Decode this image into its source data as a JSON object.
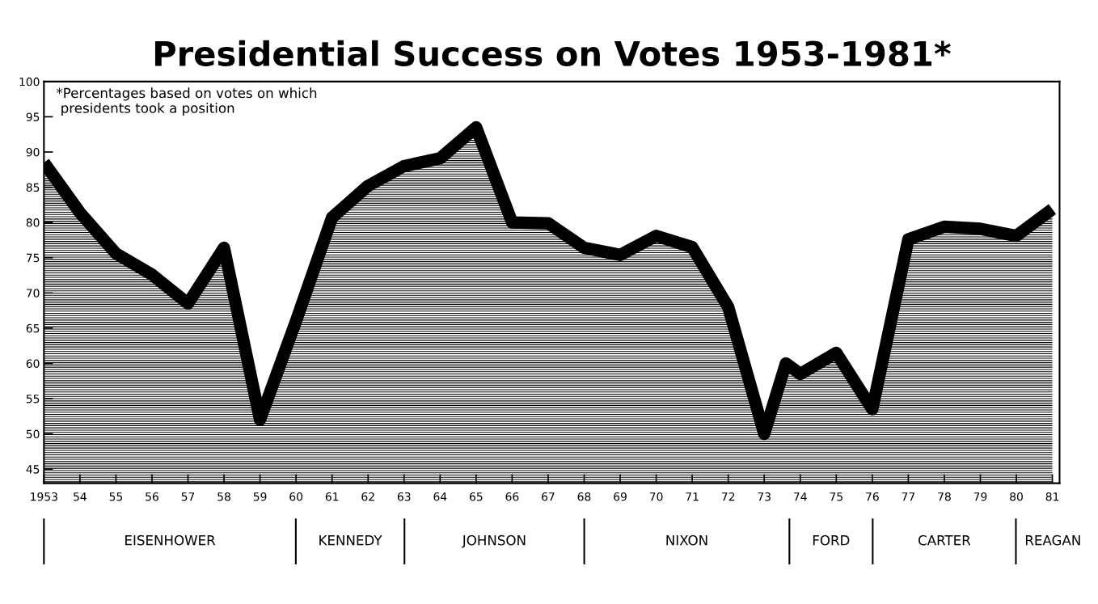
{
  "chart_data": {
    "type": "area",
    "title": "Presidential Success on Votes 1953-1981*",
    "x": [
      1953,
      1954,
      1955,
      1956,
      1957,
      1958,
      1959,
      1960,
      1961,
      1962,
      1963,
      1964,
      1965,
      1966,
      1967,
      1968,
      1969,
      1970,
      1971,
      1972,
      1973,
      1973.6,
      1974,
      1975,
      1976,
      1977,
      1978,
      1979,
      1980,
      1981
    ],
    "series": [
      {
        "color": "#000000",
        "values": [
          88.5,
          81.4,
          75.6,
          72.6,
          68.5,
          76.4,
          52,
          66,
          80.7,
          85.2,
          88,
          89.1,
          93.5,
          80,
          79.9,
          76.4,
          75.4,
          78.1,
          76.5,
          68,
          50,
          60,
          58.5,
          61.5,
          53.5,
          77.6,
          79.4,
          79.1,
          78.1,
          81.9
        ]
      }
    ],
    "xlim": [
      1953,
      1981.2
    ],
    "ylim": [
      43,
      100
    ],
    "xticks": [
      {
        "value": 1953,
        "label": "1953"
      },
      {
        "value": 1954,
        "label": "54"
      },
      {
        "value": 1955,
        "label": "55"
      },
      {
        "value": 1956,
        "label": "56"
      },
      {
        "value": 1957,
        "label": "57"
      },
      {
        "value": 1958,
        "label": "58"
      },
      {
        "value": 1959,
        "label": "59"
      },
      {
        "value": 1960,
        "label": "60"
      },
      {
        "value": 1961,
        "label": "61"
      },
      {
        "value": 1962,
        "label": "62"
      },
      {
        "value": 1963,
        "label": "63"
      },
      {
        "value": 1964,
        "label": "64"
      },
      {
        "value": 1965,
        "label": "65"
      },
      {
        "value": 1966,
        "label": "66"
      },
      {
        "value": 1967,
        "label": "67"
      },
      {
        "value": 1968,
        "label": "68"
      },
      {
        "value": 1969,
        "label": "69"
      },
      {
        "value": 1970,
        "label": "70"
      },
      {
        "value": 1971,
        "label": "71"
      },
      {
        "value": 1972,
        "label": "72"
      },
      {
        "value": 1973,
        "label": "73"
      },
      {
        "value": 1974,
        "label": "74"
      },
      {
        "value": 1975,
        "label": "75"
      },
      {
        "value": 1976,
        "label": "76"
      },
      {
        "value": 1977,
        "label": "77"
      },
      {
        "value": 1978,
        "label": "78"
      },
      {
        "value": 1979,
        "label": "79"
      },
      {
        "value": 1980,
        "label": "80"
      },
      {
        "value": 1981,
        "label": "81"
      }
    ],
    "yticks": [
      45,
      50,
      55,
      60,
      65,
      70,
      75,
      80,
      85,
      90,
      95,
      100
    ],
    "annotations": [
      "*Percentages based on votes on which\n presidents took a position",
      "EISENHOWER",
      "KENNEDY",
      "JOHNSON",
      "NIXON",
      "FORD",
      "CARTER",
      "REAGAN"
    ],
    "grid": false,
    "legend": false
  }
}
